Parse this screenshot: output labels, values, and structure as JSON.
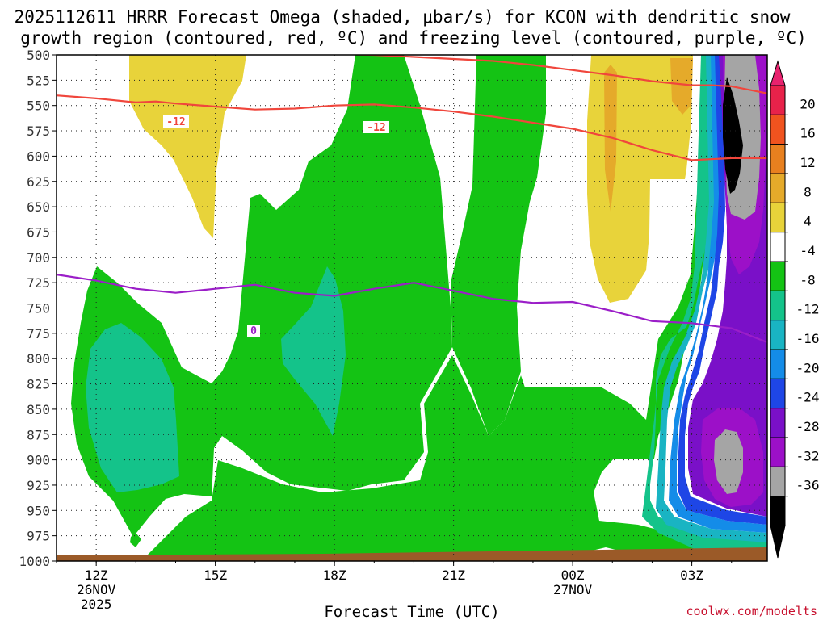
{
  "chart_data": {
    "type": "filled-contour",
    "title_line1": "2025112611 HRRR Forecast Omega (shaded, μbar/s) for KCON with dendritic snow",
    "title_line2": "growth region (contoured, red, ºC) and freezing level (contoured, purple, ºC)",
    "xlabel": "Forecast Time (UTC)",
    "credit": "coolwx.com/modelts",
    "x_ticks": [
      {
        "label": "12Z",
        "hour": 12,
        "sub1": "26NOV",
        "sub2": "2025"
      },
      {
        "label": "15Z",
        "hour": 15,
        "sub1": "",
        "sub2": ""
      },
      {
        "label": "18Z",
        "hour": 18,
        "sub1": "",
        "sub2": ""
      },
      {
        "label": "21Z",
        "hour": 21,
        "sub1": "",
        "sub2": ""
      },
      {
        "label": "00Z",
        "hour": 24,
        "sub1": "27NOV",
        "sub2": ""
      },
      {
        "label": "03Z",
        "hour": 27,
        "sub1": "",
        "sub2": ""
      }
    ],
    "x_range": [
      11.0,
      28.9
    ],
    "y_range": [
      500,
      1000
    ],
    "y_ticks": [
      "500",
      "525",
      "550",
      "575",
      "600",
      "625",
      "650",
      "675",
      "700",
      "725",
      "750",
      "775",
      "800",
      "825",
      "850",
      "875",
      "900",
      "925",
      "950",
      "975",
      "1000"
    ],
    "colorbar": {
      "labels": [
        "20",
        "16",
        "12",
        "8",
        "4",
        "-4",
        "-8",
        "-12",
        "-16",
        "-20",
        "-24",
        "-28",
        "-32",
        "-36"
      ],
      "colors": [
        "#e8224a",
        "#f0531f",
        "#e8801f",
        "#e5aa2a",
        "#e8d33a",
        "#ffffff",
        "#14c314",
        "#14c38a",
        "#19b4c3",
        "#148ce8",
        "#1e46e6",
        "#7a10c8",
        "#9c10c8",
        "#a5a5a5",
        "#000000"
      ],
      "top_arrow_color": "#e8226e",
      "bottom_arrow_color": "#000000"
    },
    "series": [
      {
        "name": "dendritic growth top",
        "color": "#f0463c",
        "label": "-12",
        "x": [
          11.0,
          12.0,
          13.0,
          14.0,
          15.0,
          16.0,
          17.0,
          18.0,
          19.0,
          20.0,
          21.0,
          22.0,
          23.0,
          24.0,
          25.0,
          26.0,
          27.0,
          27.5,
          28.0,
          28.9
        ],
        "y": [
          488,
          490,
          492,
          494,
          496,
          497,
          498,
          499,
          500,
          502,
          504,
          506,
          510,
          515,
          520,
          526,
          530,
          530,
          531,
          538
        ]
      },
      {
        "name": "dendritic growth bottom",
        "color": "#f0463c",
        "label": "-12",
        "x": [
          11.0,
          12.0,
          13.0,
          13.5,
          14.0,
          15.0,
          16.0,
          17.0,
          18.0,
          19.0,
          20.0,
          21.0,
          22.0,
          23.0,
          24.0,
          25.0,
          26.0,
          27.0,
          28.0,
          28.9
        ],
        "y": [
          540,
          543,
          547,
          546,
          548,
          551,
          554,
          553,
          550,
          549,
          552,
          556,
          561,
          567,
          573,
          582,
          594,
          604,
          602,
          602
        ]
      },
      {
        "name": "freezing level",
        "color": "#9b1ec8",
        "label": "0",
        "x": [
          11.0,
          12.0,
          13.0,
          14.0,
          15.0,
          16.0,
          17.0,
          18.0,
          19.0,
          20.0,
          21.0,
          22.0,
          23.0,
          24.0,
          25.0,
          26.0,
          27.0,
          28.0,
          28.9
        ],
        "y": [
          717,
          723,
          731,
          735,
          731,
          727,
          735,
          738,
          731,
          725,
          733,
          741,
          745,
          744,
          753,
          763,
          765,
          770,
          784
        ]
      }
    ],
    "shaded_regions": [
      {
        "level": "-8 to -4",
        "color": "#14c314",
        "description": "broad green band at 700-950 hPa from 11Z to 23Z"
      },
      {
        "level": "4 to 8",
        "color": "#e8d33a",
        "description": "yellow upward motion aloft near 13Z and 01Z"
      },
      {
        "level": "-36 to -12",
        "color": "mixed",
        "description": "strong ascent column after 02Z, 500-1000 hPa"
      }
    ]
  }
}
